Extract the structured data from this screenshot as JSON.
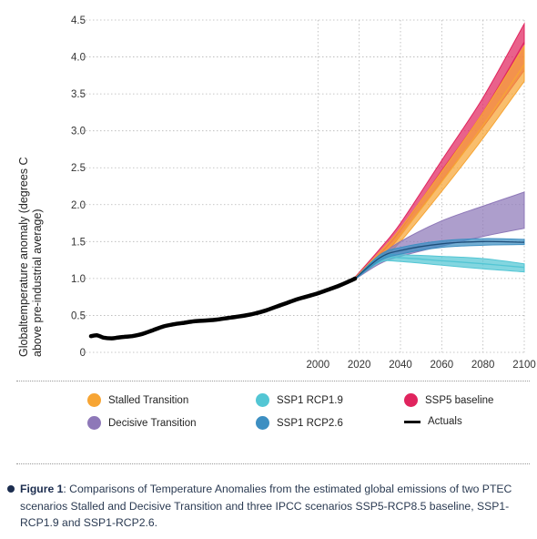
{
  "chart_data": {
    "type": "area",
    "ylabel_line1": "Globaltemperature anomaly (degrees C",
    "ylabel_line2": "above pre-industrial average)",
    "xlim": [
      1890,
      2100
    ],
    "ylim": [
      0,
      4.5
    ],
    "x_ticks": [
      2000,
      2020,
      2040,
      2060,
      2080,
      2100
    ],
    "y_ticks": [
      0,
      0.5,
      1.0,
      1.5,
      2.0,
      2.5,
      3.0,
      3.5,
      4.0,
      4.5
    ],
    "y_tick_labels": [
      "0",
      "0.5",
      "1.0",
      "1.5",
      "2.0",
      "2.5",
      "3.0",
      "3.5",
      "4.0",
      "4.5"
    ],
    "grid": "horizontal dotted",
    "series": [
      {
        "name": "SSP5 baseline",
        "color": "#e0245e",
        "x": [
          2018,
          2030,
          2040,
          2060,
          2080,
          2100
        ],
        "upper": [
          1.02,
          1.4,
          1.75,
          2.6,
          3.45,
          4.45
        ],
        "lower": [
          1.0,
          1.27,
          1.58,
          2.32,
          3.05,
          3.82
        ],
        "median": [
          1.01,
          1.33,
          1.66,
          2.46,
          3.25,
          4.2
        ]
      },
      {
        "name": "Stalled Transition",
        "color": "#f7a534",
        "x": [
          2018,
          2030,
          2040,
          2060,
          2080,
          2100
        ],
        "upper": [
          1.01,
          1.36,
          1.68,
          2.45,
          3.25,
          4.15
        ],
        "lower": [
          0.99,
          1.24,
          1.5,
          2.18,
          2.9,
          3.67
        ],
        "median": [
          1.0,
          1.3,
          1.59,
          2.31,
          3.07,
          3.9
        ]
      },
      {
        "name": "Decisive Transition",
        "color": "#8e78b8",
        "x": [
          2018,
          2030,
          2040,
          2060,
          2080,
          2100
        ],
        "upper": [
          1.0,
          1.3,
          1.5,
          1.78,
          1.98,
          2.17
        ],
        "lower": [
          0.99,
          1.2,
          1.3,
          1.44,
          1.57,
          1.68
        ],
        "median": null
      },
      {
        "name": "SSP1 RCP1.9",
        "color": "#53c6d4",
        "x": [
          2018,
          2030,
          2040,
          2060,
          2080,
          2100
        ],
        "upper": [
          1.0,
          1.3,
          1.32,
          1.3,
          1.27,
          1.2
        ],
        "lower": [
          0.99,
          1.22,
          1.23,
          1.18,
          1.13,
          1.09
        ],
        "median": [
          1.0,
          1.26,
          1.28,
          1.24,
          1.2,
          1.15
        ]
      },
      {
        "name": "SSP1 RCP2.6",
        "color": "#3d8fc2",
        "x": [
          2018,
          2030,
          2040,
          2060,
          2080,
          2100
        ],
        "upper": [
          1.0,
          1.32,
          1.42,
          1.51,
          1.54,
          1.53
        ],
        "lower": [
          0.99,
          1.24,
          1.33,
          1.42,
          1.45,
          1.46
        ],
        "median": [
          1.0,
          1.28,
          1.38,
          1.47,
          1.5,
          1.49
        ]
      },
      {
        "name": "Actuals",
        "color": "#000000",
        "x": [
          1890,
          1893,
          1896,
          1900,
          1903,
          1906,
          1910,
          1915,
          1920,
          1925,
          1930,
          1935,
          1940,
          1945,
          1950,
          1955,
          1960,
          1965,
          1970,
          1975,
          1980,
          1985,
          1990,
          1995,
          2000,
          2005,
          2010,
          2015,
          2018
        ],
        "y": [
          0.22,
          0.23,
          0.2,
          0.19,
          0.2,
          0.21,
          0.22,
          0.25,
          0.3,
          0.35,
          0.38,
          0.4,
          0.42,
          0.43,
          0.44,
          0.46,
          0.48,
          0.5,
          0.53,
          0.57,
          0.62,
          0.67,
          0.72,
          0.76,
          0.8,
          0.85,
          0.9,
          0.96,
          1.0
        ]
      }
    ]
  },
  "legend": [
    {
      "label": "Stalled Transition",
      "color": "#f7a534",
      "kind": "dot"
    },
    {
      "label": "SSP1 RCP1.9",
      "color": "#53c6d4",
      "kind": "dot"
    },
    {
      "label": "SSP5 baseline",
      "color": "#e0245e",
      "kind": "dot"
    },
    {
      "label": "Decisive Transition",
      "color": "#8e78b8",
      "kind": "dot"
    },
    {
      "label": "SSP1 RCP2.6",
      "color": "#3d8fc2",
      "kind": "dot"
    },
    {
      "label": "Actuals",
      "color": "#111111",
      "kind": "line"
    }
  ],
  "caption": {
    "label": "Figure 1",
    "text": ": Comparisons of Temperature Anomalies from the estimated global emissions of two PTEC scenarios Stalled and Decisive Transition and three IPCC scenarios SSP5-RCP8.5 baseline, SSP1-RCP1.9 and SSP1-RCP2.6."
  }
}
